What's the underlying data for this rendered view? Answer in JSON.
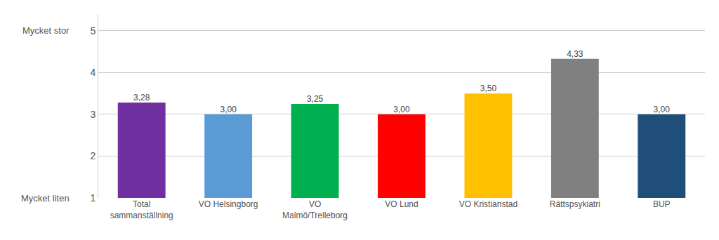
{
  "chart_data": {
    "type": "bar",
    "categories": [
      "Total\nsammanställning",
      "VO Helsingborg",
      "VO\nMalmö/Trelleborg",
      "VO Lund",
      "VO Kristianstad",
      "Rättspsykiatri",
      "BUP"
    ],
    "values": [
      3.28,
      3.0,
      3.25,
      3.0,
      3.5,
      4.33,
      3.0
    ],
    "value_labels": [
      "3,28",
      "3,00",
      "3,25",
      "3,00",
      "3,50",
      "4,33",
      "3,00"
    ],
    "colors": [
      "#7030a0",
      "#5b9bd5",
      "#00b050",
      "#ff0000",
      "#ffc000",
      "#808080",
      "#1f4e79"
    ],
    "data_labels": true,
    "ylim": [
      1,
      5.4
    ],
    "yticks": [
      1,
      2,
      3,
      4,
      5
    ],
    "grid": true,
    "annotations": [
      {
        "text": "Mycket stor",
        "y": 5
      },
      {
        "text": "Mycket liten",
        "y": 1
      }
    ]
  }
}
